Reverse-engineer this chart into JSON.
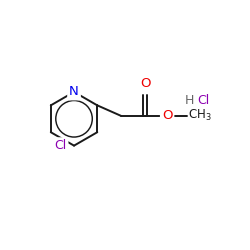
{
  "bg_color": "#ffffff",
  "bond_color": "#1a1a1a",
  "bond_lw": 1.4,
  "N_color": "#0000ee",
  "O_color": "#ee0000",
  "Cl_ring_color": "#8b00b0",
  "HCl_H_color": "#666666",
  "HCl_Cl_color": "#8b00b0",
  "figsize": [
    2.5,
    2.5
  ],
  "dpi": 100,
  "xlim": [
    0,
    10
  ],
  "ylim": [
    0,
    10
  ]
}
